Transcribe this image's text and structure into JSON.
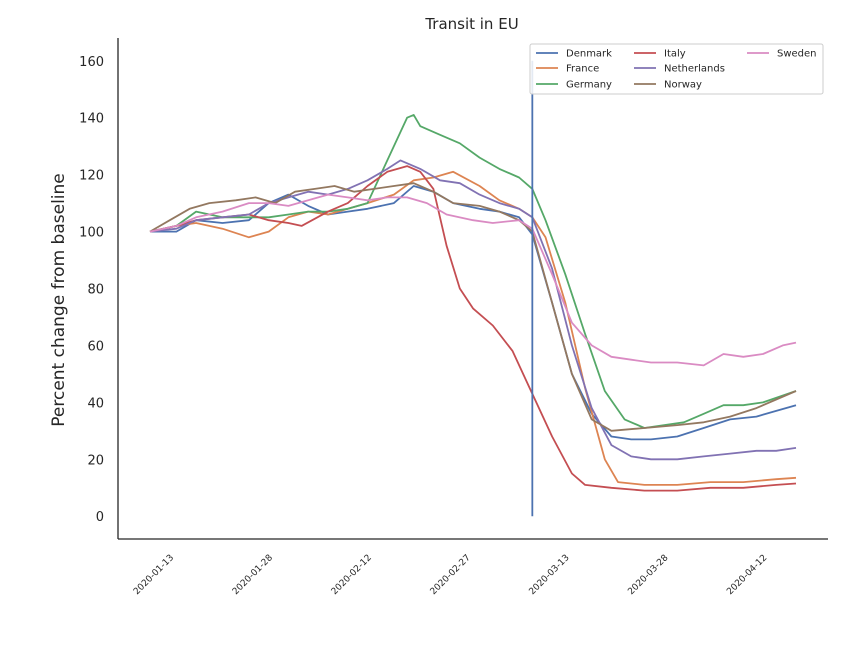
{
  "chart_data": {
    "type": "line",
    "title": "Transit in EU",
    "xlabel": "",
    "ylabel": "Percent change from baseline",
    "ylim": [
      -8,
      168
    ],
    "yticks": [
      0,
      20,
      40,
      60,
      80,
      100,
      120,
      140,
      160
    ],
    "xticks": [
      "2020-01-13",
      "2020-01-28",
      "2020-02-12",
      "2020-02-27",
      "2020-03-13",
      "2020-03-28",
      "2020-04-12"
    ],
    "x_start": "2020-01-13",
    "x_end": "2020-04-20",
    "vline": {
      "date": "2020-03-11",
      "y_from": 0,
      "y_to": 160,
      "color": "#4c72b0"
    },
    "grid": false,
    "legend_position": "top-right",
    "series": [
      {
        "name": "Denmark",
        "color": "#4c72b0",
        "points": [
          [
            "2020-01-13",
            100
          ],
          [
            "2020-01-17",
            100
          ],
          [
            "2020-01-20",
            104
          ],
          [
            "2020-01-24",
            103
          ],
          [
            "2020-01-28",
            104
          ],
          [
            "2020-01-31",
            110
          ],
          [
            "2020-02-03",
            113
          ],
          [
            "2020-02-06",
            109
          ],
          [
            "2020-02-09",
            106
          ],
          [
            "2020-02-12",
            107
          ],
          [
            "2020-02-15",
            108
          ],
          [
            "2020-02-19",
            110
          ],
          [
            "2020-02-22",
            116
          ],
          [
            "2020-02-25",
            114
          ],
          [
            "2020-02-28",
            110
          ],
          [
            "2020-03-03",
            108
          ],
          [
            "2020-03-06",
            107
          ],
          [
            "2020-03-09",
            105
          ],
          [
            "2020-03-11",
            99
          ],
          [
            "2020-03-14",
            75
          ],
          [
            "2020-03-17",
            50
          ],
          [
            "2020-03-20",
            36
          ],
          [
            "2020-03-23",
            28
          ],
          [
            "2020-03-26",
            27
          ],
          [
            "2020-03-29",
            27
          ],
          [
            "2020-04-02",
            28
          ],
          [
            "2020-04-06",
            31
          ],
          [
            "2020-04-10",
            34
          ],
          [
            "2020-04-14",
            35
          ],
          [
            "2020-04-17",
            37
          ],
          [
            "2020-04-20",
            39
          ]
        ]
      },
      {
        "name": "France",
        "color": "#dd8452",
        "points": [
          [
            "2020-01-13",
            100
          ],
          [
            "2020-01-17",
            102
          ],
          [
            "2020-01-20",
            103
          ],
          [
            "2020-01-24",
            101
          ],
          [
            "2020-01-28",
            98
          ],
          [
            "2020-01-31",
            100
          ],
          [
            "2020-02-03",
            105
          ],
          [
            "2020-02-06",
            107
          ],
          [
            "2020-02-09",
            106
          ],
          [
            "2020-02-12",
            108
          ],
          [
            "2020-02-15",
            110
          ],
          [
            "2020-02-19",
            113
          ],
          [
            "2020-02-22",
            118
          ],
          [
            "2020-02-25",
            119
          ],
          [
            "2020-02-28",
            121
          ],
          [
            "2020-03-03",
            116
          ],
          [
            "2020-03-06",
            111
          ],
          [
            "2020-03-09",
            108
          ],
          [
            "2020-03-11",
            105
          ],
          [
            "2020-03-13",
            98
          ],
          [
            "2020-03-16",
            75
          ],
          [
            "2020-03-19",
            45
          ],
          [
            "2020-03-22",
            20
          ],
          [
            "2020-03-24",
            12
          ],
          [
            "2020-03-28",
            11
          ],
          [
            "2020-04-02",
            11
          ],
          [
            "2020-04-07",
            12
          ],
          [
            "2020-04-12",
            12
          ],
          [
            "2020-04-17",
            13
          ],
          [
            "2020-04-20",
            13.5
          ]
        ]
      },
      {
        "name": "Germany",
        "color": "#55a868",
        "points": [
          [
            "2020-01-13",
            100
          ],
          [
            "2020-01-17",
            102
          ],
          [
            "2020-01-20",
            107
          ],
          [
            "2020-01-24",
            105
          ],
          [
            "2020-01-28",
            105
          ],
          [
            "2020-01-31",
            105
          ],
          [
            "2020-02-03",
            106
          ],
          [
            "2020-02-06",
            107
          ],
          [
            "2020-02-09",
            107
          ],
          [
            "2020-02-12",
            108
          ],
          [
            "2020-02-15",
            110
          ],
          [
            "2020-02-18",
            125
          ],
          [
            "2020-02-21",
            140
          ],
          [
            "2020-02-22",
            141
          ],
          [
            "2020-02-23",
            137
          ],
          [
            "2020-02-26",
            134
          ],
          [
            "2020-02-29",
            131
          ],
          [
            "2020-03-03",
            126
          ],
          [
            "2020-03-06",
            122
          ],
          [
            "2020-03-09",
            119
          ],
          [
            "2020-03-11",
            115
          ],
          [
            "2020-03-13",
            104
          ],
          [
            "2020-03-16",
            85
          ],
          [
            "2020-03-19",
            64
          ],
          [
            "2020-03-22",
            44
          ],
          [
            "2020-03-25",
            34
          ],
          [
            "2020-03-28",
            31
          ],
          [
            "2020-03-31",
            32
          ],
          [
            "2020-04-03",
            33
          ],
          [
            "2020-04-06",
            36
          ],
          [
            "2020-04-09",
            39
          ],
          [
            "2020-04-12",
            39
          ],
          [
            "2020-04-15",
            40
          ],
          [
            "2020-04-20",
            44
          ]
        ]
      },
      {
        "name": "Italy",
        "color": "#c44e52",
        "points": [
          [
            "2020-01-13",
            100
          ],
          [
            "2020-01-17",
            102
          ],
          [
            "2020-01-20",
            104
          ],
          [
            "2020-01-24",
            105
          ],
          [
            "2020-01-28",
            106
          ],
          [
            "2020-01-31",
            104
          ],
          [
            "2020-02-03",
            103
          ],
          [
            "2020-02-05",
            102
          ],
          [
            "2020-02-09",
            107
          ],
          [
            "2020-02-12",
            110
          ],
          [
            "2020-02-15",
            116
          ],
          [
            "2020-02-18",
            121
          ],
          [
            "2020-02-21",
            123
          ],
          [
            "2020-02-23",
            121
          ],
          [
            "2020-02-25",
            115
          ],
          [
            "2020-02-27",
            95
          ],
          [
            "2020-02-29",
            80
          ],
          [
            "2020-03-02",
            73
          ],
          [
            "2020-03-05",
            67
          ],
          [
            "2020-03-08",
            58
          ],
          [
            "2020-03-11",
            43
          ],
          [
            "2020-03-14",
            28
          ],
          [
            "2020-03-17",
            15
          ],
          [
            "2020-03-19",
            11
          ],
          [
            "2020-03-23",
            10
          ],
          [
            "2020-03-28",
            9
          ],
          [
            "2020-04-02",
            9
          ],
          [
            "2020-04-07",
            10
          ],
          [
            "2020-04-12",
            10
          ],
          [
            "2020-04-17",
            11
          ],
          [
            "2020-04-20",
            11.5
          ]
        ]
      },
      {
        "name": "Netherlands",
        "color": "#8172b3",
        "points": [
          [
            "2020-01-13",
            100
          ],
          [
            "2020-01-17",
            101
          ],
          [
            "2020-01-20",
            104
          ],
          [
            "2020-01-24",
            105
          ],
          [
            "2020-01-28",
            106
          ],
          [
            "2020-01-31",
            110
          ],
          [
            "2020-02-03",
            112
          ],
          [
            "2020-02-06",
            114
          ],
          [
            "2020-02-09",
            113
          ],
          [
            "2020-02-12",
            115
          ],
          [
            "2020-02-15",
            118
          ],
          [
            "2020-02-18",
            122
          ],
          [
            "2020-02-20",
            125
          ],
          [
            "2020-02-23",
            122
          ],
          [
            "2020-02-26",
            118
          ],
          [
            "2020-02-29",
            117
          ],
          [
            "2020-03-03",
            113
          ],
          [
            "2020-03-06",
            110
          ],
          [
            "2020-03-09",
            108
          ],
          [
            "2020-03-11",
            105
          ],
          [
            "2020-03-14",
            87
          ],
          [
            "2020-03-17",
            60
          ],
          [
            "2020-03-20",
            38
          ],
          [
            "2020-03-23",
            25
          ],
          [
            "2020-03-26",
            21
          ],
          [
            "2020-03-29",
            20
          ],
          [
            "2020-04-02",
            20
          ],
          [
            "2020-04-06",
            21
          ],
          [
            "2020-04-10",
            22
          ],
          [
            "2020-04-14",
            23
          ],
          [
            "2020-04-17",
            23
          ],
          [
            "2020-04-20",
            24
          ]
        ]
      },
      {
        "name": "Norway",
        "color": "#937860",
        "points": [
          [
            "2020-01-13",
            100
          ],
          [
            "2020-01-16",
            104
          ],
          [
            "2020-01-19",
            108
          ],
          [
            "2020-01-22",
            110
          ],
          [
            "2020-01-26",
            111
          ],
          [
            "2020-01-29",
            112
          ],
          [
            "2020-02-01",
            110
          ],
          [
            "2020-02-04",
            114
          ],
          [
            "2020-02-07",
            115
          ],
          [
            "2020-02-10",
            116
          ],
          [
            "2020-02-13",
            114
          ],
          [
            "2020-02-16",
            115
          ],
          [
            "2020-02-19",
            116
          ],
          [
            "2020-02-22",
            117
          ],
          [
            "2020-02-25",
            114
          ],
          [
            "2020-02-28",
            110
          ],
          [
            "2020-03-03",
            109
          ],
          [
            "2020-03-06",
            107
          ],
          [
            "2020-03-09",
            104
          ],
          [
            "2020-03-11",
            100
          ],
          [
            "2020-03-14",
            75
          ],
          [
            "2020-03-17",
            50
          ],
          [
            "2020-03-20",
            34
          ],
          [
            "2020-03-23",
            30
          ],
          [
            "2020-03-28",
            31
          ],
          [
            "2020-04-02",
            32
          ],
          [
            "2020-04-06",
            33
          ],
          [
            "2020-04-10",
            35
          ],
          [
            "2020-04-14",
            38
          ],
          [
            "2020-04-17",
            41
          ],
          [
            "2020-04-20",
            44
          ]
        ]
      },
      {
        "name": "Sweden",
        "color": "#da8bc3",
        "points": [
          [
            "2020-01-13",
            100
          ],
          [
            "2020-01-17",
            102
          ],
          [
            "2020-01-20",
            105
          ],
          [
            "2020-01-24",
            107
          ],
          [
            "2020-01-28",
            110
          ],
          [
            "2020-01-31",
            110
          ],
          [
            "2020-02-03",
            109
          ],
          [
            "2020-02-06",
            111
          ],
          [
            "2020-02-09",
            113
          ],
          [
            "2020-02-12",
            112
          ],
          [
            "2020-02-15",
            111
          ],
          [
            "2020-02-18",
            112
          ],
          [
            "2020-02-21",
            112
          ],
          [
            "2020-02-24",
            110
          ],
          [
            "2020-02-27",
            106
          ],
          [
            "2020-03-02",
            104
          ],
          [
            "2020-03-05",
            103
          ],
          [
            "2020-03-09",
            104
          ],
          [
            "2020-03-11",
            101
          ],
          [
            "2020-03-14",
            85
          ],
          [
            "2020-03-17",
            68
          ],
          [
            "2020-03-20",
            60
          ],
          [
            "2020-03-23",
            56
          ],
          [
            "2020-03-26",
            55
          ],
          [
            "2020-03-29",
            54
          ],
          [
            "2020-04-02",
            54
          ],
          [
            "2020-04-06",
            53
          ],
          [
            "2020-04-09",
            57
          ],
          [
            "2020-04-12",
            56
          ],
          [
            "2020-04-15",
            57
          ],
          [
            "2020-04-18",
            60
          ],
          [
            "2020-04-20",
            61
          ]
        ]
      }
    ]
  }
}
